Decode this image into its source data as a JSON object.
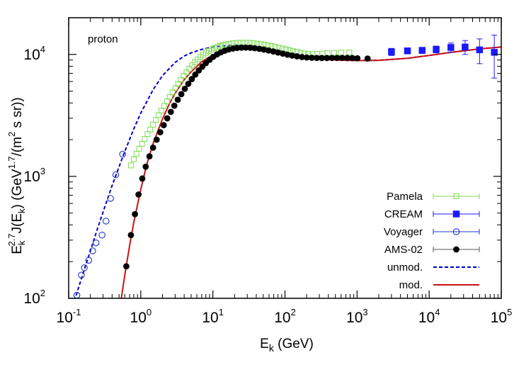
{
  "chart_data": {
    "type": "scatter",
    "panel_label": "proton",
    "xlabel": {
      "base": "E",
      "sub": "k",
      "unit": " (GeV)"
    },
    "ylabel": {
      "base": "E",
      "sub": "k",
      "sup": "2.7",
      "mid": "J(E",
      "sub2": "k",
      "tail": ") (GeV",
      "sup2": "1.7",
      "tail2": "/(m",
      "sup3": "2",
      "tail3": " s sr))"
    },
    "x_scale": "log",
    "y_scale": "log",
    "xlim": [
      0.1,
      100000
    ],
    "ylim": [
      100,
      20000
    ],
    "x_ticks": [
      {
        "value": 0.1,
        "base": "10",
        "exp": "-1"
      },
      {
        "value": 1,
        "base": "10",
        "exp": "0"
      },
      {
        "value": 10,
        "base": "10",
        "exp": "1"
      },
      {
        "value": 100,
        "base": "10",
        "exp": "2"
      },
      {
        "value": 1000,
        "base": "10",
        "exp": "3"
      },
      {
        "value": 10000,
        "base": "10",
        "exp": "4"
      },
      {
        "value": 100000,
        "base": "10",
        "exp": "5"
      }
    ],
    "y_ticks": [
      {
        "value": 100,
        "base": "10",
        "exp": "2"
      },
      {
        "value": 1000,
        "base": "10",
        "exp": "3"
      },
      {
        "value": 10000,
        "base": "10",
        "exp": "4"
      }
    ],
    "legend_position": "bottom-right",
    "series": [
      {
        "name": "Pamela",
        "kind": "points",
        "marker": "open-square",
        "color": "#7fdc55",
        "points": [
          [
            0.73,
            1230
          ],
          [
            0.8,
            1380
          ],
          [
            0.87,
            1530
          ],
          [
            0.95,
            1690
          ],
          [
            1.04,
            1850
          ],
          [
            1.13,
            2030
          ],
          [
            1.24,
            2220
          ],
          [
            1.35,
            2420
          ],
          [
            1.48,
            2650
          ],
          [
            1.62,
            2900
          ],
          [
            1.77,
            3170
          ],
          [
            1.93,
            3460
          ],
          [
            2.11,
            3780
          ],
          [
            2.31,
            4120
          ],
          [
            2.52,
            4490
          ],
          [
            2.76,
            4880
          ],
          [
            3.02,
            5300
          ],
          [
            3.3,
            5740
          ],
          [
            3.6,
            6200
          ],
          [
            3.94,
            6680
          ],
          [
            4.31,
            7160
          ],
          [
            4.71,
            7650
          ],
          [
            5.15,
            8140
          ],
          [
            5.63,
            8620
          ],
          [
            6.15,
            9080
          ],
          [
            6.72,
            9520
          ],
          [
            7.35,
            9940
          ],
          [
            8.03,
            10320
          ],
          [
            8.78,
            10670
          ],
          [
            9.6,
            10990
          ],
          [
            10.5,
            11270
          ],
          [
            11.5,
            11520
          ],
          [
            12.6,
            11740
          ],
          [
            13.8,
            11930
          ],
          [
            15.2,
            12090
          ],
          [
            16.9,
            12220
          ],
          [
            18.8,
            12330
          ],
          [
            21,
            12410
          ],
          [
            23.5,
            12460
          ],
          [
            26.3,
            12480
          ],
          [
            29.4,
            12470
          ],
          [
            32.9,
            12430
          ],
          [
            36.8,
            12360
          ],
          [
            41.2,
            12270
          ],
          [
            46.2,
            12150
          ],
          [
            51.7,
            12010
          ],
          [
            58,
            11860
          ],
          [
            65,
            11700
          ],
          [
            73,
            11530
          ],
          [
            82,
            11350
          ],
          [
            92,
            11170
          ],
          [
            103,
            10990
          ],
          [
            116,
            10810
          ],
          [
            130,
            10640
          ],
          [
            146,
            10480
          ],
          [
            164,
            10330
          ],
          [
            185,
            10200
          ],
          [
            210,
            10100
          ],
          [
            240,
            10050
          ],
          [
            280,
            10100
          ],
          [
            330,
            10150
          ],
          [
            390,
            10250
          ],
          [
            480,
            10300
          ],
          [
            600,
            10350
          ],
          [
            780,
            10400
          ]
        ]
      },
      {
        "name": "CREAM",
        "kind": "points",
        "marker": "filled-square",
        "color": "#1a1aff",
        "points": [
          [
            3000,
            10500
          ],
          [
            5000,
            10700
          ],
          [
            8000,
            10800
          ],
          [
            12500,
            11000
          ],
          [
            20000,
            11400
          ],
          [
            31500,
            11500
          ],
          [
            50000,
            10900
          ],
          [
            80000,
            10400
          ]
        ],
        "errors": [
          [
            3000,
            700
          ],
          [
            5000,
            600
          ],
          [
            8000,
            600
          ],
          [
            12500,
            700
          ],
          [
            20000,
            1000
          ],
          [
            31500,
            1500
          ],
          [
            50000,
            2500
          ],
          [
            80000,
            4000
          ]
        ]
      },
      {
        "name": "Voyager",
        "kind": "points",
        "marker": "open-circle",
        "color": "#2233cc",
        "points": [
          [
            0.13,
            106
          ],
          [
            0.15,
            155
          ],
          [
            0.165,
            178
          ],
          [
            0.19,
            205
          ],
          [
            0.215,
            245
          ],
          [
            0.24,
            285
          ],
          [
            0.29,
            330
          ],
          [
            0.33,
            430
          ],
          [
            0.38,
            660
          ],
          [
            0.45,
            1030
          ],
          [
            0.56,
            1520
          ]
        ]
      },
      {
        "name": "AMS-02",
        "kind": "points",
        "marker": "filled-circle",
        "color": "#000000",
        "points": [
          [
            0.63,
            183
          ],
          [
            0.73,
            330
          ],
          [
            0.83,
            490
          ],
          [
            0.93,
            710
          ],
          [
            1.05,
            960
          ],
          [
            1.17,
            1200
          ],
          [
            1.32,
            1460
          ],
          [
            1.48,
            1720
          ],
          [
            1.66,
            2000
          ],
          [
            1.86,
            2300
          ],
          [
            2.08,
            2630
          ],
          [
            2.33,
            2990
          ],
          [
            2.61,
            3380
          ],
          [
            2.92,
            3800
          ],
          [
            3.26,
            4250
          ],
          [
            3.65,
            4720
          ],
          [
            4.08,
            5220
          ],
          [
            4.56,
            5740
          ],
          [
            5.1,
            6280
          ],
          [
            5.7,
            6830
          ],
          [
            6.38,
            7390
          ],
          [
            7.15,
            7950
          ],
          [
            8,
            8500
          ],
          [
            9,
            9040
          ],
          [
            10.1,
            9550
          ],
          [
            11.4,
            10000
          ],
          [
            12.9,
            10400
          ],
          [
            14.6,
            10720
          ],
          [
            16.6,
            10980
          ],
          [
            19,
            11170
          ],
          [
            21.7,
            11300
          ],
          [
            24.9,
            11370
          ],
          [
            28.6,
            11380
          ],
          [
            33,
            11340
          ],
          [
            38,
            11250
          ],
          [
            44,
            11120
          ],
          [
            51,
            10960
          ],
          [
            59,
            10770
          ],
          [
            69,
            10570
          ],
          [
            80,
            10360
          ],
          [
            93,
            10150
          ],
          [
            108,
            9960
          ],
          [
            126,
            9790
          ],
          [
            147,
            9640
          ],
          [
            172,
            9520
          ],
          [
            201,
            9440
          ],
          [
            236,
            9390
          ],
          [
            277,
            9360
          ],
          [
            325,
            9350
          ],
          [
            382,
            9350
          ],
          [
            449,
            9360
          ],
          [
            528,
            9360
          ],
          [
            621,
            9360
          ],
          [
            730,
            9360
          ],
          [
            859,
            9340
          ],
          [
            1010,
            9300
          ],
          [
            1400,
            9250
          ]
        ]
      },
      {
        "name": "unmod.",
        "kind": "line",
        "style": "dashed",
        "color": "#0000cc",
        "points": [
          [
            0.12,
            95
          ],
          [
            0.15,
            145
          ],
          [
            0.2,
            245
          ],
          [
            0.25,
            370
          ],
          [
            0.3,
            510
          ],
          [
            0.4,
            840
          ],
          [
            0.5,
            1200
          ],
          [
            0.6,
            1600
          ],
          [
            0.8,
            2450
          ],
          [
            1,
            3300
          ],
          [
            1.5,
            5200
          ],
          [
            2,
            6700
          ],
          [
            3,
            8600
          ],
          [
            4,
            9700
          ],
          [
            5,
            10300
          ],
          [
            7,
            11000
          ],
          [
            10,
            11500
          ],
          [
            15,
            11800
          ],
          [
            20,
            11900
          ],
          [
            30,
            11800
          ],
          [
            40,
            11600
          ],
          [
            60,
            11200
          ],
          [
            80,
            10800
          ],
          [
            100,
            10500
          ],
          [
            200,
            9600
          ],
          [
            500,
            9000
          ],
          [
            1000,
            8900
          ],
          [
            2000,
            8950
          ],
          [
            5000,
            9300
          ],
          [
            10000,
            9800
          ],
          [
            20000,
            10400
          ],
          [
            50000,
            11100
          ],
          [
            100000,
            11500
          ]
        ]
      },
      {
        "name": "mod.",
        "kind": "line",
        "style": "solid",
        "color": "#cc1111",
        "points": [
          [
            0.53,
            95
          ],
          [
            0.6,
            155
          ],
          [
            0.7,
            270
          ],
          [
            0.8,
            420
          ],
          [
            1,
            780
          ],
          [
            1.2,
            1230
          ],
          [
            1.5,
            1900
          ],
          [
            2,
            2950
          ],
          [
            2.5,
            3950
          ],
          [
            3,
            4800
          ],
          [
            4,
            6200
          ],
          [
            5,
            7200
          ],
          [
            7,
            8700
          ],
          [
            10,
            9900
          ],
          [
            15,
            10800
          ],
          [
            20,
            11200
          ],
          [
            30,
            11350
          ],
          [
            40,
            11250
          ],
          [
            60,
            10900
          ],
          [
            80,
            10600
          ],
          [
            100,
            10300
          ],
          [
            200,
            9500
          ],
          [
            500,
            9000
          ],
          [
            1000,
            8900
          ],
          [
            2000,
            8950
          ],
          [
            5000,
            9300
          ],
          [
            10000,
            9800
          ],
          [
            20000,
            10400
          ],
          [
            50000,
            11100
          ],
          [
            100000,
            11500
          ]
        ]
      }
    ]
  }
}
